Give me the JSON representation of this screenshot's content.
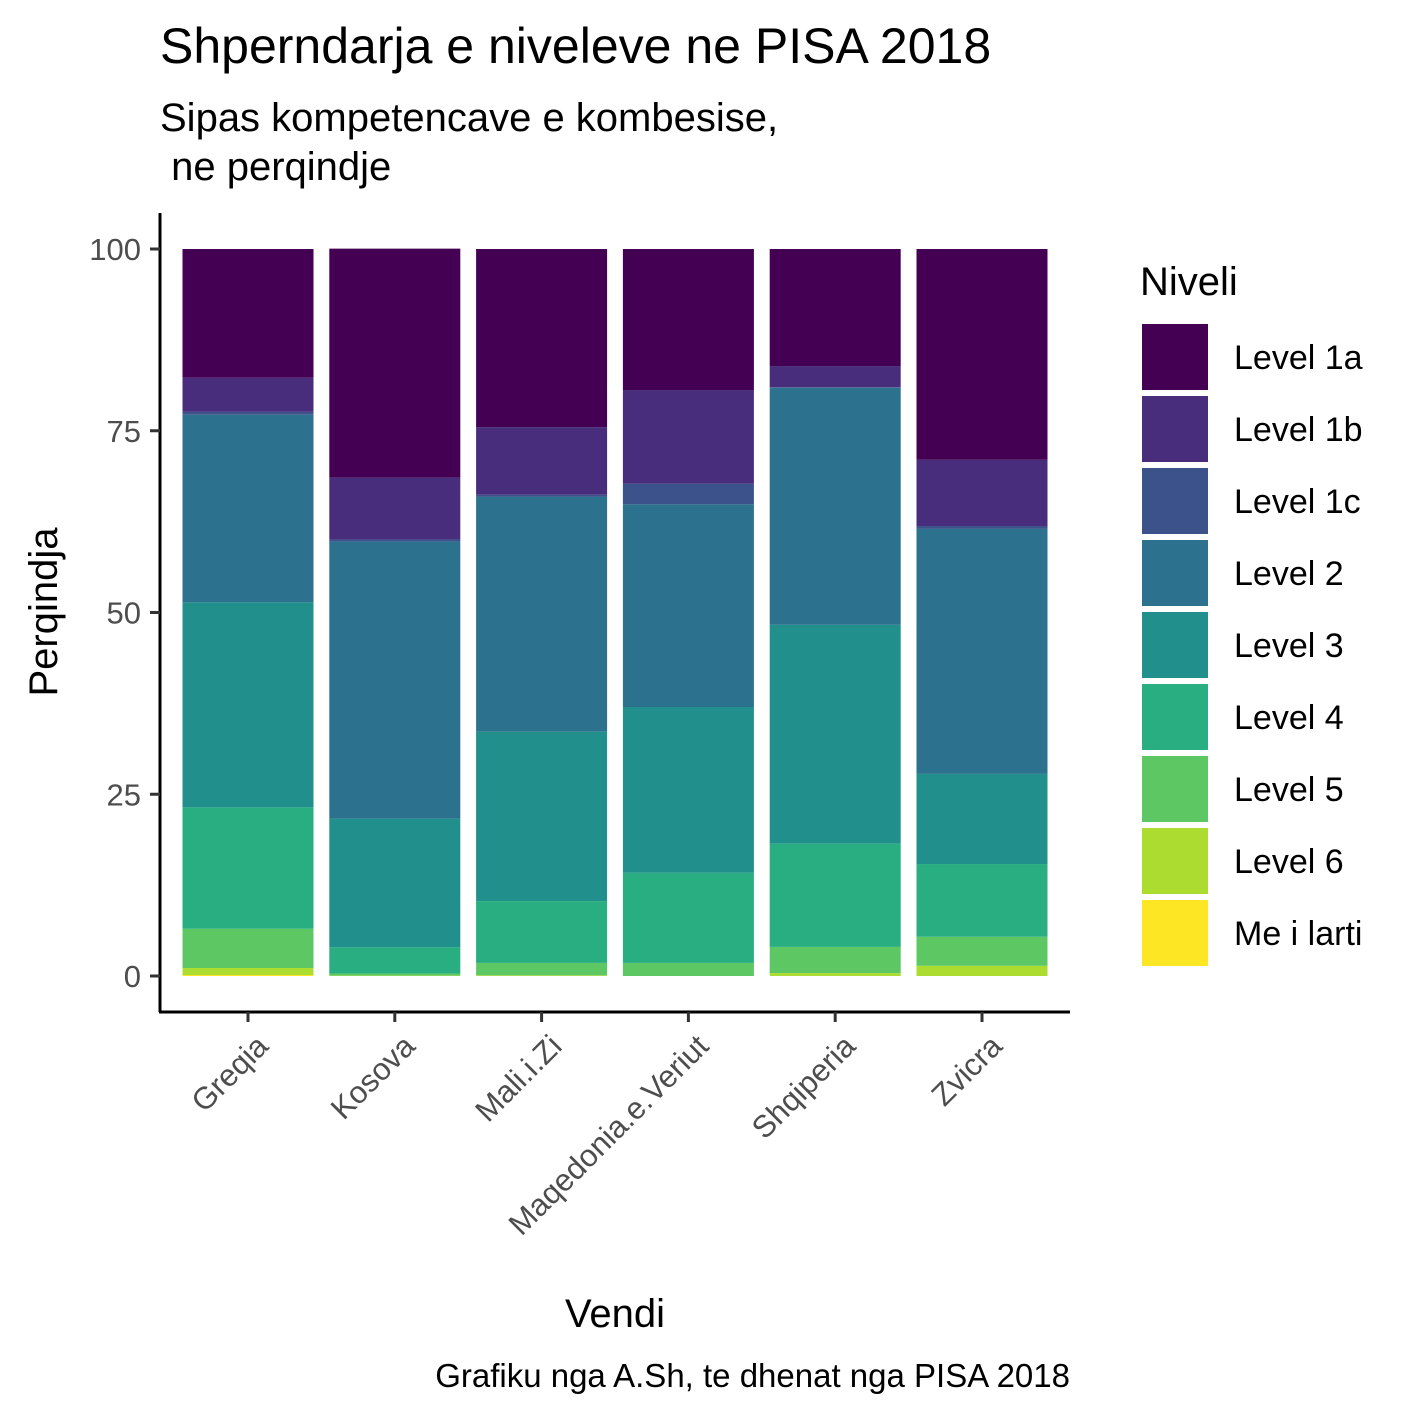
{
  "chart_data": {
    "type": "bar",
    "stacked": true,
    "title": "Shperndarja e niveleve ne PISA 2018",
    "subtitle_lines": [
      "Sipas kompetencave e kombesise,",
      " ne perqindje"
    ],
    "xlabel": "Vendi",
    "ylabel": "Perqindja",
    "caption": "Grafiku nga A.Sh, te dhenat nga PISA 2018",
    "ylim": [
      0,
      100
    ],
    "yticks": [
      "0",
      "25",
      "50",
      "75",
      "100"
    ],
    "grid": false,
    "legend_position": "right",
    "legend_title": "Niveli",
    "categories": [
      "Greqia",
      "Kosova",
      "Mali.i.Zi",
      "Maqedonia.e.Veriut",
      "Shqiperia",
      "Zvicra"
    ],
    "series": [
      {
        "name": "Level 1a",
        "color": "#440154",
        "values": [
          17.7,
          31.5,
          24.5,
          19.4,
          16.1,
          29.0
        ]
      },
      {
        "name": "Level 1b",
        "color": "#472D7B",
        "values": [
          4.7,
          8.5,
          9.3,
          12.9,
          2.9,
          9.1
        ]
      },
      {
        "name": "Level 1c",
        "color": "#3B528B",
        "values": [
          0.4,
          0.3,
          0.3,
          2.8,
          0.1,
          0.4
        ]
      },
      {
        "name": "Level 2",
        "color": "#2C728E",
        "values": [
          25.8,
          38.1,
          32.3,
          27.9,
          32.6,
          33.7
        ]
      },
      {
        "name": "Level 3",
        "color": "#21908C",
        "values": [
          28.2,
          17.7,
          23.3,
          22.8,
          30.1,
          12.4
        ]
      },
      {
        "name": "Level 4",
        "color": "#28AE80",
        "values": [
          16.7,
          3.6,
          8.5,
          12.4,
          14.2,
          10.0
        ]
      },
      {
        "name": "Level 5",
        "color": "#5DC863",
        "values": [
          5.4,
          0.3,
          1.7,
          1.8,
          3.6,
          4.0
        ]
      },
      {
        "name": "Level 6",
        "color": "#ADDC30",
        "values": [
          0.96,
          0.05,
          0.1,
          0.0,
          0.4,
          1.4
        ]
      },
      {
        "name": "Me i larti",
        "color": "#FDE725",
        "values": [
          0.14,
          0.0,
          0.0,
          0.0,
          0.0,
          0.0
        ]
      }
    ]
  }
}
